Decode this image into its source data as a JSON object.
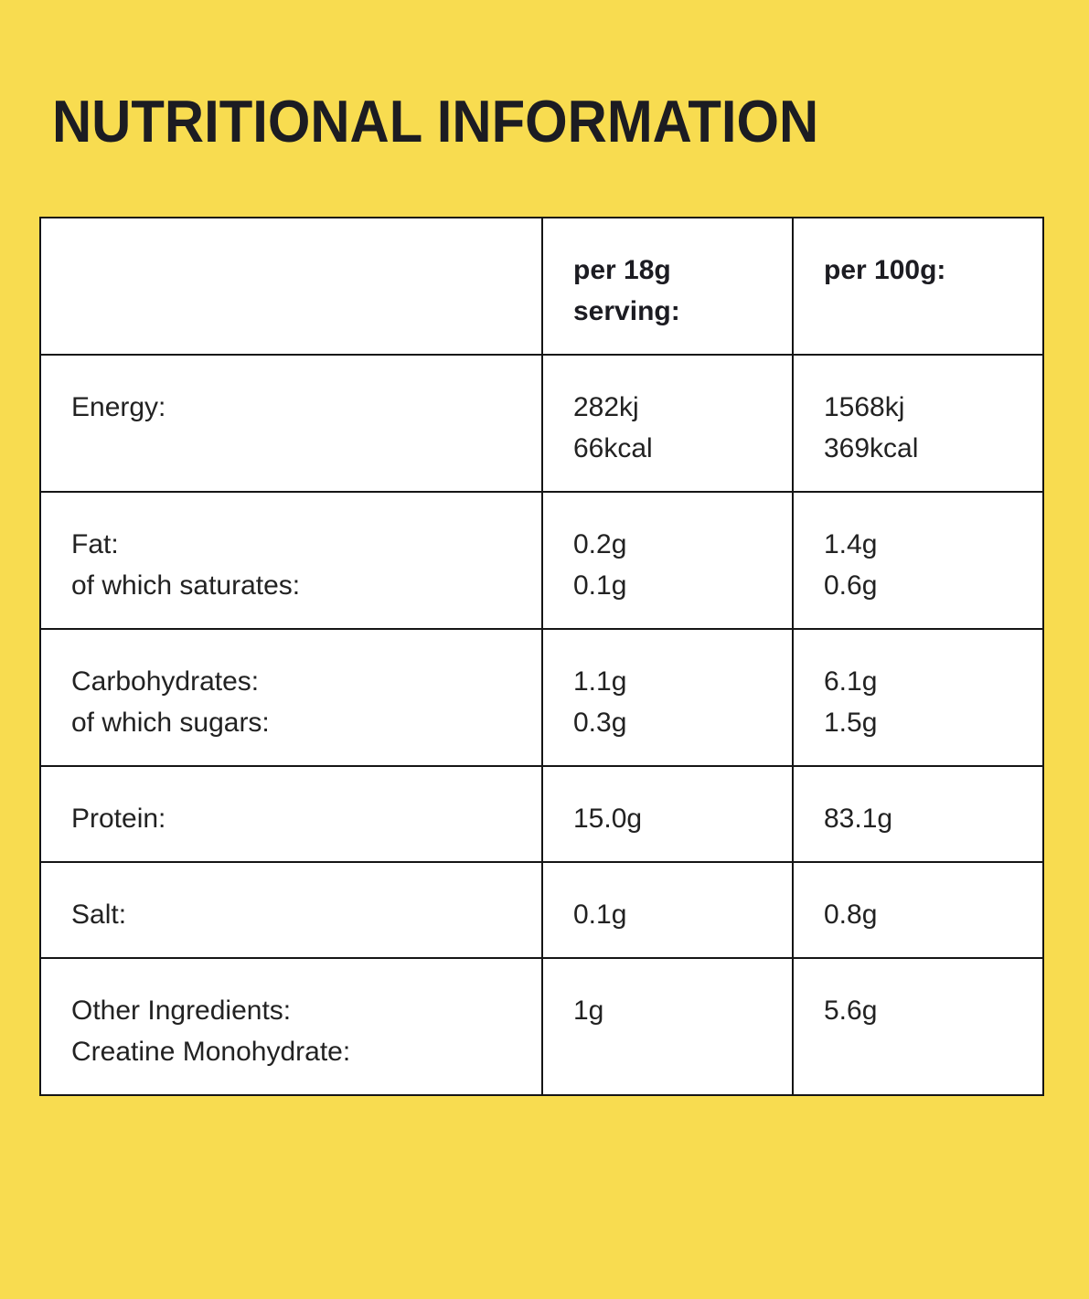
{
  "page": {
    "title": "NUTRITIONAL INFORMATION",
    "background_color": "#F8DC50",
    "title_color": "#1C1C22",
    "body_text_color": "#222222"
  },
  "table": {
    "border_color": "#151515",
    "cell_background": "#FFFFFF",
    "header": {
      "cells": [
        {
          "lines": []
        },
        {
          "lines": [
            "per 18g",
            "serving:"
          ]
        },
        {
          "lines": [
            "per 100g:"
          ]
        }
      ]
    },
    "rows": [
      {
        "cells": [
          {
            "lines": [
              "Energy:"
            ]
          },
          {
            "lines": [
              "282kj",
              "66kcal"
            ]
          },
          {
            "lines": [
              "1568kj",
              "369kcal"
            ]
          }
        ]
      },
      {
        "cells": [
          {
            "lines": [
              "Fat:",
              "of which saturates:"
            ]
          },
          {
            "lines": [
              "0.2g",
              "0.1g"
            ]
          },
          {
            "lines": [
              "1.4g",
              "0.6g"
            ]
          }
        ]
      },
      {
        "cells": [
          {
            "lines": [
              "Carbohydrates:",
              "of which sugars:"
            ]
          },
          {
            "lines": [
              "1.1g",
              "0.3g"
            ]
          },
          {
            "lines": [
              "6.1g",
              "1.5g"
            ]
          }
        ]
      },
      {
        "cells": [
          {
            "lines": [
              "Protein:"
            ]
          },
          {
            "lines": [
              "15.0g"
            ]
          },
          {
            "lines": [
              "83.1g"
            ]
          }
        ]
      },
      {
        "cells": [
          {
            "lines": [
              "Salt:"
            ]
          },
          {
            "lines": [
              "0.1g"
            ]
          },
          {
            "lines": [
              "0.8g"
            ]
          }
        ]
      },
      {
        "cells": [
          {
            "lines": [
              "Other Ingredients:",
              "Creatine Monohydrate:"
            ]
          },
          {
            "lines": [
              "1g"
            ]
          },
          {
            "lines": [
              "5.6g"
            ]
          }
        ]
      }
    ]
  }
}
